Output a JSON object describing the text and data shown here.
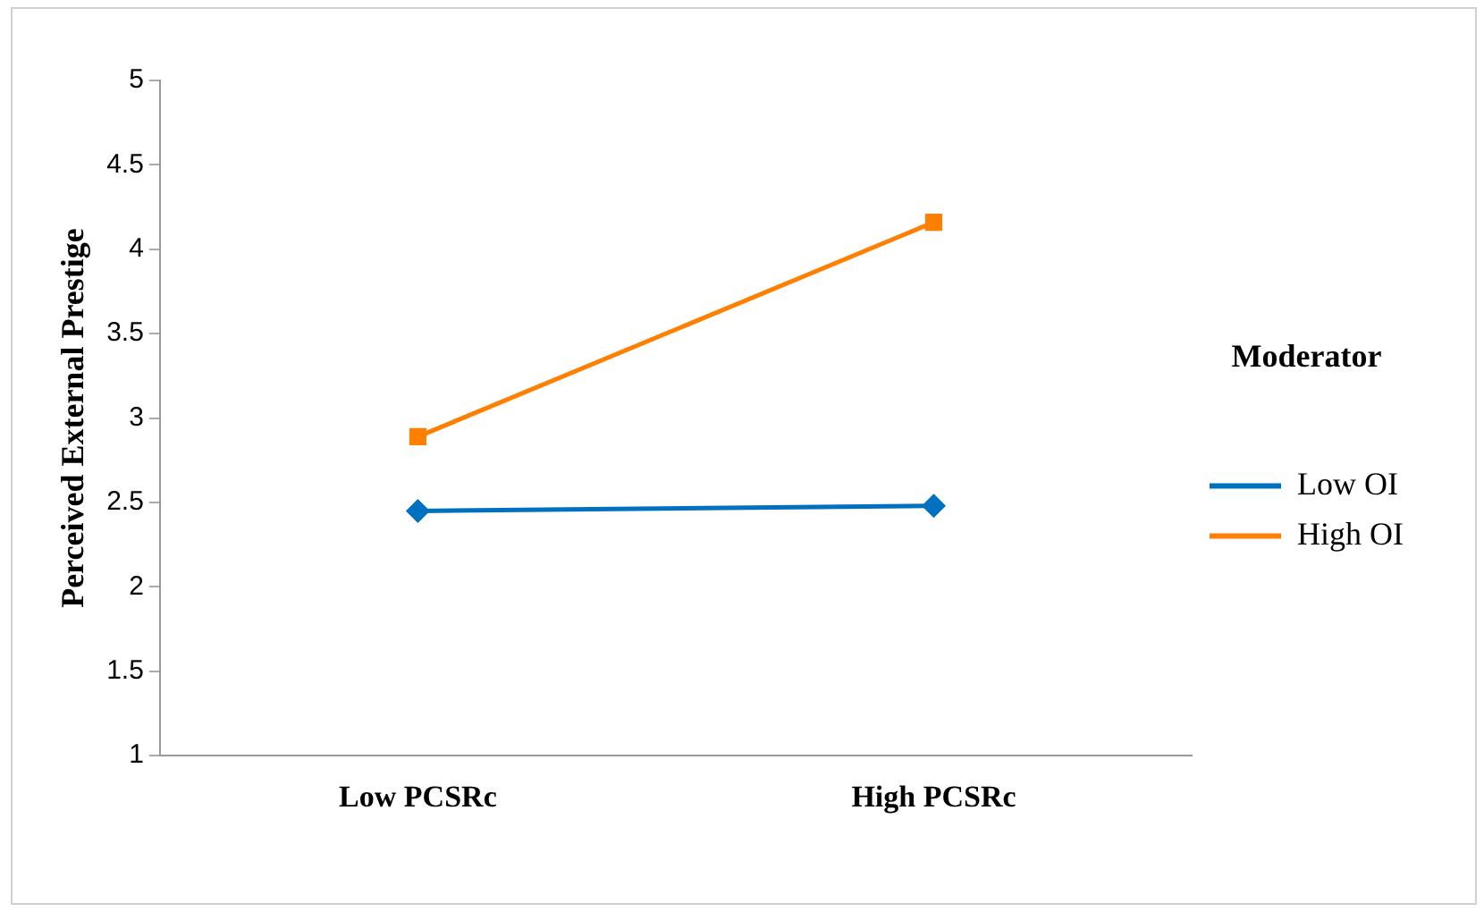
{
  "chart_data": {
    "type": "line",
    "ylabel": "Perceived External Prestige",
    "legend_title": "Moderator",
    "categories": [
      "Low PCSRc",
      "High PCSRc"
    ],
    "series": [
      {
        "name": "Low OI",
        "color": "#0070c0",
        "values": [
          2.45,
          2.48
        ],
        "marker": "diamond"
      },
      {
        "name": "High OI",
        "color": "#ff8000",
        "values": [
          2.89,
          4.16
        ],
        "marker": "square"
      }
    ],
    "ylim": [
      1,
      5
    ],
    "yticks": [
      1,
      1.5,
      2,
      2.5,
      3,
      3.5,
      4,
      4.5,
      5
    ],
    "grid": false,
    "legend": "right",
    "line_style": "solid"
  }
}
